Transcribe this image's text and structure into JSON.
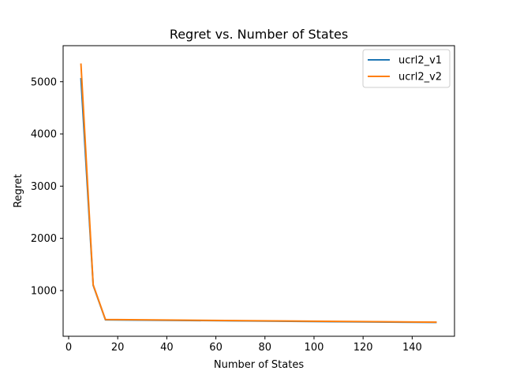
{
  "chart_data": {
    "type": "line",
    "title": "Regret vs. Number of States",
    "xlabel": "Number of States",
    "ylabel": "Regret",
    "xlim": [
      -2.25,
      157.25
    ],
    "ylim": [
      125,
      5690
    ],
    "xticks": [
      0,
      20,
      40,
      60,
      80,
      100,
      120,
      140
    ],
    "yticks": [
      1000,
      2000,
      3000,
      4000,
      5000
    ],
    "grid": false,
    "legend_position": "top-right",
    "series": [
      {
        "name": "ucrl2_v1",
        "color": "#1f77b4",
        "x": [
          5,
          10,
          15,
          150
        ],
        "y": [
          5070,
          1100,
          440,
          390
        ]
      },
      {
        "name": "ucrl2_v2",
        "color": "#ff7f0e",
        "x": [
          5,
          10,
          15,
          150
        ],
        "y": [
          5350,
          1110,
          445,
          395
        ]
      }
    ]
  }
}
